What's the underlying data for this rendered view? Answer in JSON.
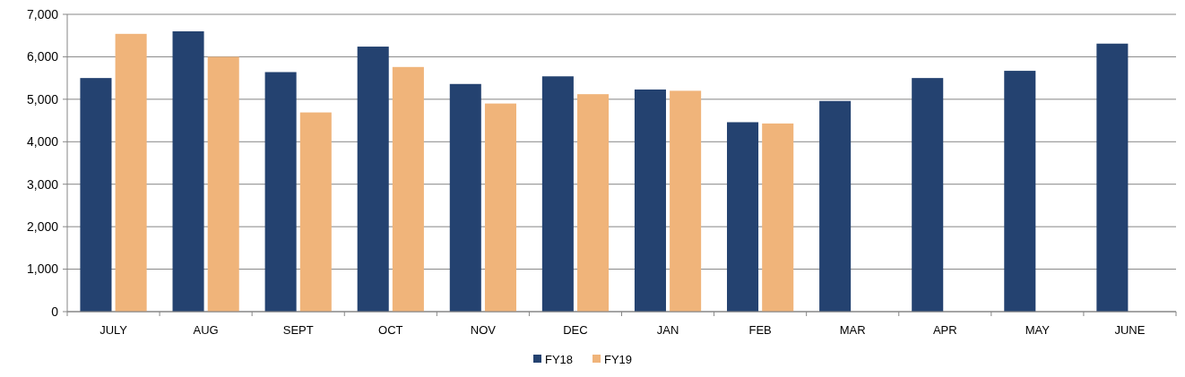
{
  "chart_data": {
    "type": "bar",
    "categories": [
      "JULY",
      "AUG",
      "SEPT",
      "OCT",
      "NOV",
      "DEC",
      "JAN",
      "FEB",
      "MAR",
      "APR",
      "MAY",
      "JUNE"
    ],
    "series": [
      {
        "name": "FY18",
        "color": "#244270",
        "values": [
          5500,
          6600,
          5640,
          6240,
          5360,
          5540,
          5230,
          4460,
          4960,
          5500,
          5670,
          6310
        ]
      },
      {
        "name": "FY19",
        "color": "#f0b47a",
        "values": [
          6540,
          6000,
          4690,
          5760,
          4900,
          5120,
          5200,
          4430,
          null,
          null,
          null,
          null
        ]
      }
    ],
    "ylim": [
      0,
      7000
    ],
    "yticks": [
      {
        "value": 0,
        "label": "0"
      },
      {
        "value": 1000,
        "label": "1,000"
      },
      {
        "value": 2000,
        "label": "2,000"
      },
      {
        "value": 3000,
        "label": "3,000"
      },
      {
        "value": 4000,
        "label": "4,000"
      },
      {
        "value": 5000,
        "label": "5,000"
      },
      {
        "value": 6000,
        "label": "6,000"
      },
      {
        "value": 7000,
        "label": "7,000"
      }
    ],
    "grid": "y",
    "legend": "bottom"
  }
}
